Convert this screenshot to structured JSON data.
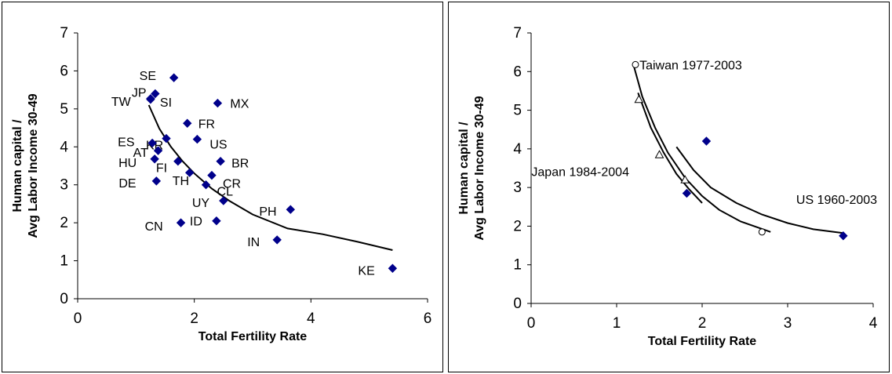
{
  "chart_data": [
    {
      "type": "scatter",
      "title": "",
      "xlabel": "Total Fertility Rate",
      "ylabel_lines": [
        "Human capital /",
        "Avg Labor Income 30-49"
      ],
      "xlim": [
        0,
        6
      ],
      "ylim": [
        0,
        7
      ],
      "xticks": [
        0,
        2,
        4,
        6
      ],
      "yticks": [
        0,
        1,
        2,
        3,
        4,
        5,
        6,
        7
      ],
      "grid": false,
      "marker_color": "#00008b",
      "points": [
        {
          "label": "SE",
          "x": 1.65,
          "y": 5.82
        },
        {
          "label": "JP",
          "x": 1.33,
          "y": 5.4
        },
        {
          "label": "TW",
          "x": 1.25,
          "y": 5.25
        },
        {
          "label": "SI",
          "x": 1.25,
          "y": 5.27
        },
        {
          "label": "MX",
          "x": 2.4,
          "y": 5.15
        },
        {
          "label": "FR",
          "x": 1.88,
          "y": 4.62
        },
        {
          "label": "KR",
          "x": 1.52,
          "y": 4.22
        },
        {
          "label": "US",
          "x": 2.05,
          "y": 4.2
        },
        {
          "label": "ES",
          "x": 1.28,
          "y": 4.1
        },
        {
          "label": "AT",
          "x": 1.38,
          "y": 3.9
        },
        {
          "label": "HU",
          "x": 1.32,
          "y": 3.68
        },
        {
          "label": "FI",
          "x": 1.72,
          "y": 3.62
        },
        {
          "label": "BR",
          "x": 2.45,
          "y": 3.62
        },
        {
          "label": "TH",
          "x": 1.92,
          "y": 3.32
        },
        {
          "label": "CR",
          "x": 2.3,
          "y": 3.25
        },
        {
          "label": "DE",
          "x": 1.35,
          "y": 3.1
        },
        {
          "label": "CL",
          "x": 2.2,
          "y": 3.0
        },
        {
          "label": "UY",
          "x": 2.5,
          "y": 2.58
        },
        {
          "label": "PH",
          "x": 3.65,
          "y": 2.35
        },
        {
          "label": "CN",
          "x": 1.77,
          "y": 2.0
        },
        {
          "label": "ID",
          "x": 2.38,
          "y": 2.05
        },
        {
          "label": "IN",
          "x": 3.42,
          "y": 1.55
        },
        {
          "label": "KE",
          "x": 5.4,
          "y": 0.8
        }
      ],
      "trend_line": {
        "x": [
          1.22,
          1.4,
          1.6,
          1.8,
          2.0,
          2.3,
          2.6,
          3.0,
          3.6,
          4.2,
          4.8,
          5.4
        ],
        "y": [
          5.1,
          4.48,
          4.0,
          3.62,
          3.3,
          2.9,
          2.58,
          2.22,
          1.85,
          1.7,
          1.5,
          1.28
        ]
      }
    },
    {
      "type": "scatter",
      "title": "",
      "xlabel": "Total Fertility Rate",
      "ylabel_lines": [
        "Human capital /",
        "Avg Labor Income 30-49"
      ],
      "xlim": [
        0,
        4
      ],
      "ylim": [
        0,
        7
      ],
      "xticks": [
        0,
        1,
        2,
        3,
        4
      ],
      "yticks": [
        0,
        1,
        2,
        3,
        4,
        5,
        6,
        7
      ],
      "grid": false,
      "marker_color": "#00008b",
      "series": [
        {
          "name": "Taiwan 1977-2003",
          "marker": "circle",
          "points": [
            {
              "x": 1.22,
              "y": 6.18
            },
            {
              "x": 2.7,
              "y": 1.85
            }
          ],
          "curve": {
            "x": [
              1.2,
              1.3,
              1.45,
              1.6,
              1.8,
              2.0,
              2.2,
              2.45,
              2.8
            ],
            "y": [
              6.15,
              5.35,
              4.55,
              3.9,
              3.25,
              2.78,
              2.42,
              2.12,
              1.85
            ]
          }
        },
        {
          "name": "Japan 1984-2004",
          "marker": "triangle",
          "points": [
            {
              "x": 1.26,
              "y": 5.28
            },
            {
              "x": 1.5,
              "y": 3.85
            },
            {
              "x": 1.8,
              "y": 3.2
            }
          ],
          "curve": {
            "x": [
              1.25,
              1.4,
              1.55,
              1.7,
              1.85,
              2.0
            ],
            "y": [
              5.45,
              4.55,
              3.9,
              3.35,
              2.95,
              2.6
            ]
          }
        },
        {
          "name": "US 1960-2003",
          "marker": "diamond",
          "points": [
            {
              "x": 1.82,
              "y": 2.85
            },
            {
              "x": 2.05,
              "y": 4.2
            },
            {
              "x": 3.65,
              "y": 1.75
            }
          ],
          "curve": {
            "x": [
              1.7,
              1.9,
              2.1,
              2.4,
              2.7,
              3.0,
              3.3,
              3.65
            ],
            "y": [
              4.05,
              3.45,
              3.0,
              2.6,
              2.3,
              2.08,
              1.92,
              1.82
            ]
          }
        }
      ]
    }
  ]
}
